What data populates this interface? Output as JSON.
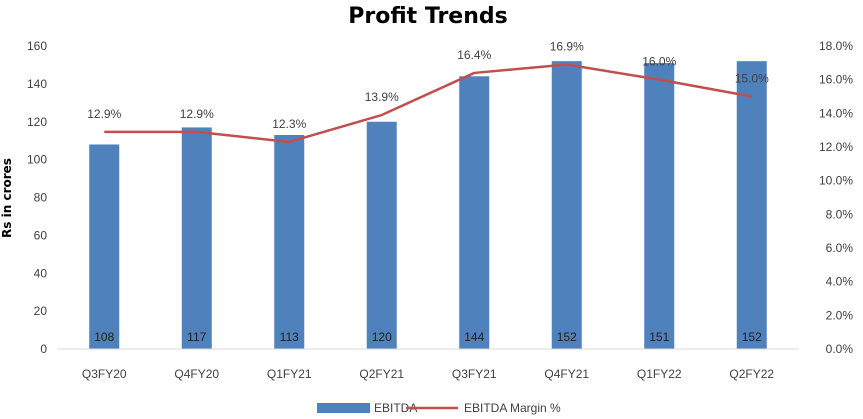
{
  "chart_data": {
    "type": "bar",
    "title": "Profit Trends",
    "ylabel": "Rs in crores",
    "categories": [
      "Q3FY20",
      "Q4FY20",
      "Q1FY21",
      "Q2FY21",
      "Q3FY21",
      "Q4FY21",
      "Q1FY22",
      "Q2FY22"
    ],
    "series": [
      {
        "name": "EBITDA",
        "type": "bar",
        "axis": "left",
        "color": "#4f81bd",
        "values": [
          108,
          117,
          113,
          120,
          144,
          152,
          151,
          152
        ],
        "labels": [
          "108",
          "117",
          "113",
          "120",
          "144",
          "152",
          "151",
          "152"
        ]
      },
      {
        "name": "EBITDA Margin %",
        "type": "line",
        "axis": "right",
        "color": "#c0504d",
        "values": [
          12.9,
          12.9,
          12.3,
          13.9,
          16.4,
          16.9,
          16.0,
          15.0
        ],
        "labels": [
          "12.9%",
          "12.9%",
          "12.3%",
          "13.9%",
          "16.4%",
          "16.9%",
          "16.0%",
          "15.0%"
        ]
      }
    ],
    "ylim": [
      0,
      160
    ],
    "yticks": [
      "0",
      "20",
      "40",
      "60",
      "80",
      "100",
      "120",
      "140",
      "160"
    ],
    "y2lim": [
      0,
      18
    ],
    "y2ticks": [
      "0.0%",
      "2.0%",
      "4.0%",
      "6.0%",
      "8.0%",
      "10.0%",
      "12.0%",
      "14.0%",
      "16.0%",
      "18.0%"
    ],
    "grid": false,
    "legend": "bottom"
  }
}
